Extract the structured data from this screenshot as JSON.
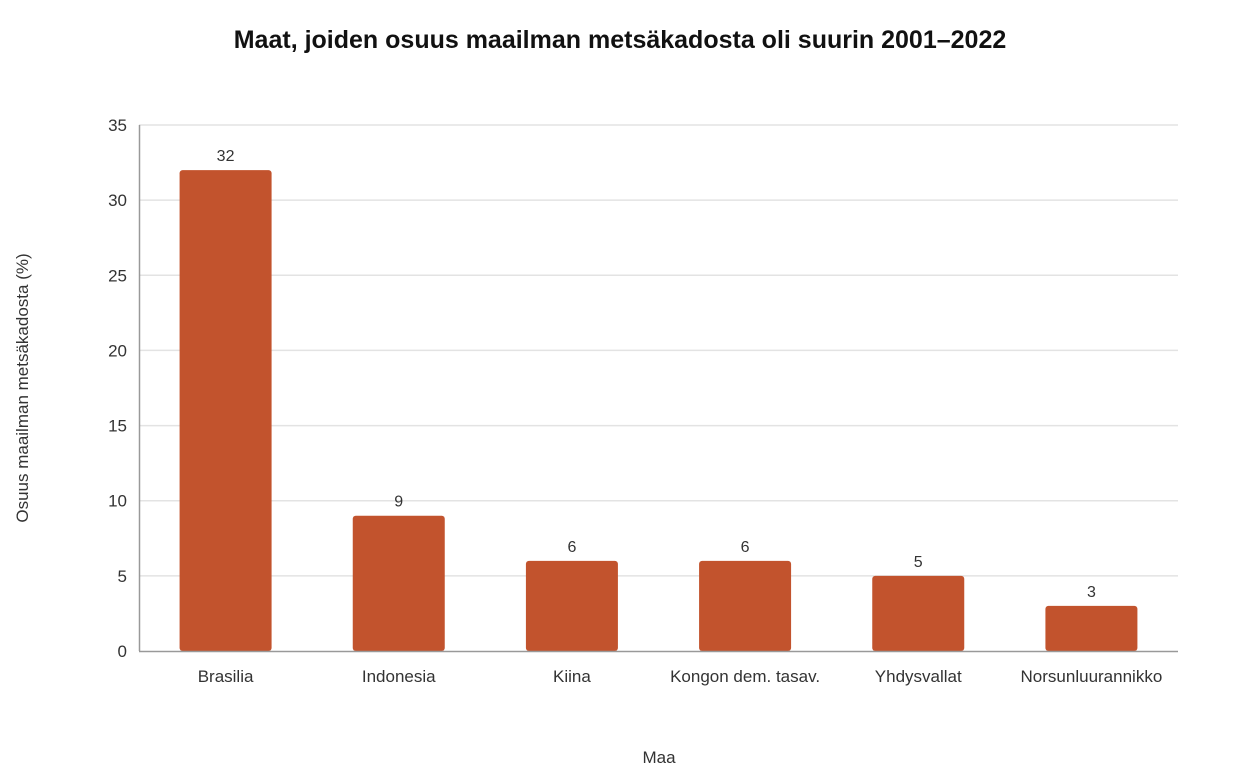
{
  "chart_data": {
    "type": "bar",
    "title": "Maat, joiden osuus maailman metsäkadosta oli suurin 2001–2022",
    "xlabel": "Maa",
    "ylabel": "Osuus maailman metsäkadosta (%)",
    "categories": [
      "Brasilia",
      "Indonesia",
      "Kiina",
      "Kongon dem. tasav.",
      "Yhdysvallat",
      "Norsunluurannikko"
    ],
    "values": [
      32,
      9,
      6,
      6,
      5,
      3
    ],
    "ylim": [
      0,
      35
    ],
    "yticks": [
      0,
      5,
      10,
      15,
      20,
      25,
      30,
      35
    ],
    "grid": true,
    "legend": "none",
    "bar_color": "#C2532D"
  }
}
